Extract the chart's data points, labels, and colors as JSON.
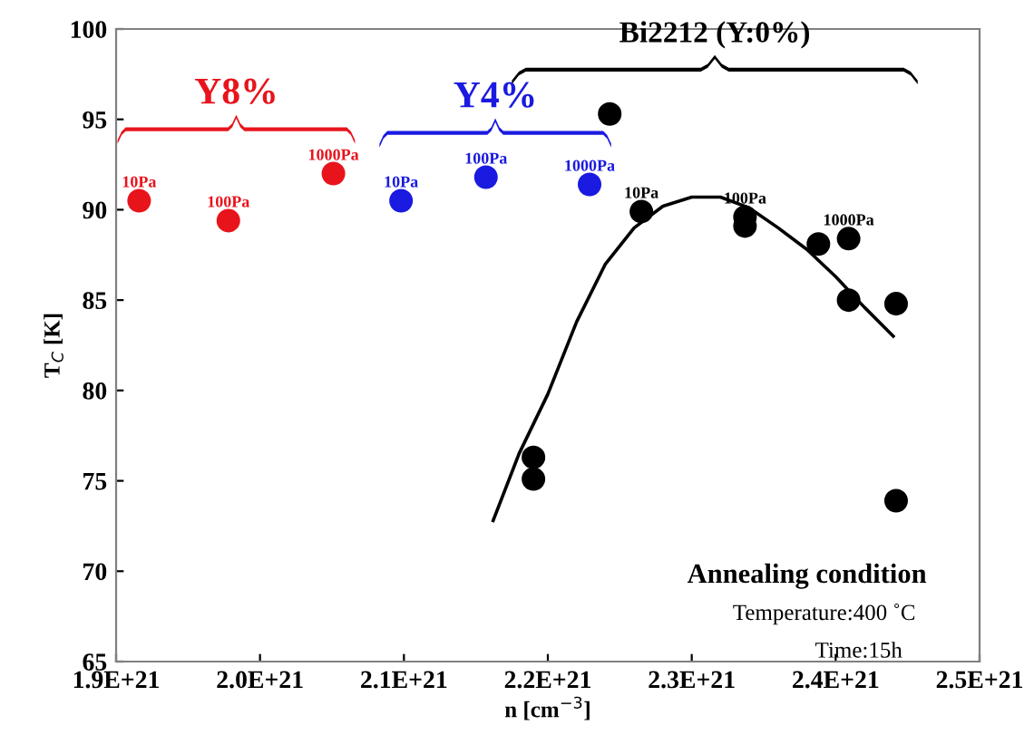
{
  "chart_data": {
    "type": "scatter",
    "xlabel": "n [cm$^{−3}$]",
    "ylabel": "T$_{C}$ [K]",
    "xlim": [
      1.9e+21,
      2.5e+21
    ],
    "xticks": [
      {
        "value": 1.9e+21,
        "label": "1.9E+21"
      },
      {
        "value": 2e+21,
        "label": "2.0E+21"
      },
      {
        "value": 2.1e+21,
        "label": "2.1E+21"
      },
      {
        "value": 2.2e+21,
        "label": "2.2E+21"
      },
      {
        "value": 2.3e+21,
        "label": "2.3E+21"
      },
      {
        "value": 2.4e+21,
        "label": "2.4E+21"
      },
      {
        "value": 2.5e+21,
        "label": "2.5E+21"
      }
    ],
    "ylim": [
      65,
      100
    ],
    "yticks": [
      65,
      70,
      75,
      80,
      85,
      90,
      95,
      100
    ],
    "marker": "circle",
    "grid": false,
    "legend": false,
    "series": [
      {
        "name": "Y8%",
        "color": "#e8141c",
        "x": [
          1.916e+21,
          1.978e+21,
          2.051e+21
        ],
        "values": [
          90.5,
          89.4,
          92.0
        ]
      },
      {
        "name": "Y4%",
        "color": "#1a1ae0",
        "x": [
          2.098e+21,
          2.157e+21,
          2.229e+21
        ],
        "values": [
          90.5,
          91.8,
          91.4
        ]
      },
      {
        "name": "Bi2212 (Y:0%)",
        "color": "#000000",
        "x": [
          2.243e+21,
          2.265e+21,
          2.337e+21,
          2.337e+21,
          2.388e+21,
          2.409e+21,
          2.409e+21,
          2.442e+21,
          2.442e+21,
          2.19e+21,
          2.19e+21
        ],
        "values": [
          95.3,
          89.9,
          89.6,
          89.1,
          88.1,
          88.4,
          85.0,
          84.8,
          73.9,
          76.3,
          75.1
        ]
      },
      {
        "type": "line",
        "marker": "none",
        "color": "#000000",
        "x": [
          2.162e+21,
          2.18e+21,
          2.2e+21,
          2.22e+21,
          2.24e+21,
          2.26e+21,
          2.28e+21,
          2.3e+21,
          2.32e+21,
          2.34e+21,
          2.36e+21,
          2.38e+21,
          2.4e+21,
          2.42e+21,
          2.44e+21
        ],
        "values": [
          72.8,
          76.5,
          79.8,
          83.8,
          87.0,
          89.0,
          90.2,
          90.7,
          90.7,
          90.1,
          89.0,
          87.8,
          86.3,
          84.6,
          83.0
        ]
      }
    ],
    "annotations": [
      {
        "text": "10Pa",
        "x": 1.916e+21,
        "y": 90.5
      },
      {
        "text": "100Pa",
        "x": 1.978e+21,
        "y": 89.4
      },
      {
        "text": "1000Pa",
        "x": 2.051e+21,
        "y": 92.0
      },
      {
        "text": "10Pa",
        "x": 2.098e+21,
        "y": 90.5
      },
      {
        "text": "100Pa",
        "x": 2.157e+21,
        "y": 91.8
      },
      {
        "text": "1000Pa",
        "x": 2.229e+21,
        "y": 91.4
      },
      {
        "text": "10Pa",
        "x": 2.265e+21,
        "y": 89.9
      },
      {
        "text": "100Pa",
        "x": 2.337e+21,
        "y": 89.6
      },
      {
        "text": "1000Pa",
        "x": 2.409e+21,
        "y": 88.4
      },
      "Annealing condition",
      "Temperature:400 ˚C",
      "Time:15h"
    ]
  }
}
